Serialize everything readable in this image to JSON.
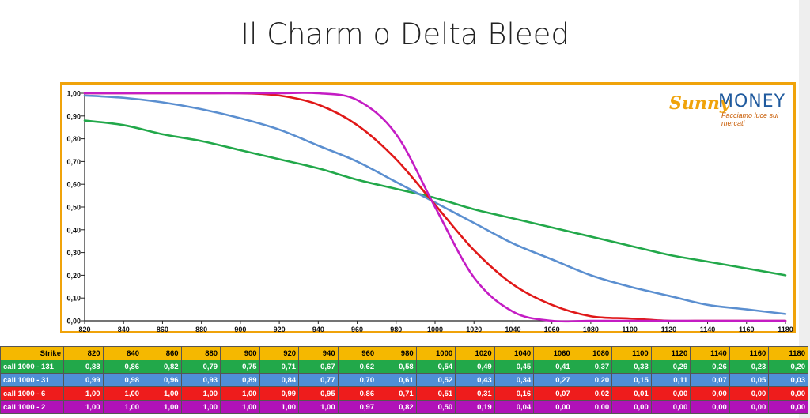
{
  "title": "Il Charm o Delta Bleed",
  "logo": {
    "word1": "Sunny",
    "word2": "MONEY",
    "tagline": "Facciamo luce sui mercati"
  },
  "colors": {
    "frame": "#f0a30a",
    "green": "#22a84a",
    "blue": "#5b8fd0",
    "red": "#e01818",
    "purple": "#c41cc4"
  },
  "chart_data": {
    "type": "line",
    "title": "",
    "xlabel": "",
    "ylabel": "",
    "x": [
      820,
      840,
      860,
      880,
      900,
      920,
      940,
      960,
      980,
      1000,
      1020,
      1040,
      1060,
      1080,
      1100,
      1120,
      1140,
      1160,
      1180
    ],
    "ylim": [
      0,
      1
    ],
    "yticks": [
      "0,00",
      "0,10",
      "0,20",
      "0,30",
      "0,40",
      "0,50",
      "0,60",
      "0,70",
      "0,80",
      "0,90",
      "1,00"
    ],
    "grid": false,
    "series": [
      {
        "name": "call 1000 - 131",
        "color": "#22a84a",
        "values": [
          0.88,
          0.86,
          0.82,
          0.79,
          0.75,
          0.71,
          0.67,
          0.62,
          0.58,
          0.54,
          0.49,
          0.45,
          0.41,
          0.37,
          0.33,
          0.29,
          0.26,
          0.23,
          0.2
        ]
      },
      {
        "name": "call 1000 - 31",
        "color": "#5b8fd0",
        "values": [
          0.99,
          0.98,
          0.96,
          0.93,
          0.89,
          0.84,
          0.77,
          0.7,
          0.61,
          0.52,
          0.43,
          0.34,
          0.27,
          0.2,
          0.15,
          0.11,
          0.07,
          0.05,
          0.03
        ]
      },
      {
        "name": "call 1000 - 6",
        "color": "#e01818",
        "values": [
          1.0,
          1.0,
          1.0,
          1.0,
          1.0,
          0.99,
          0.95,
          0.86,
          0.71,
          0.51,
          0.31,
          0.16,
          0.07,
          0.02,
          0.01,
          0.0,
          0.0,
          0.0,
          0.0
        ]
      },
      {
        "name": "call 1000 - 2",
        "color": "#c41cc4",
        "values": [
          1.0,
          1.0,
          1.0,
          1.0,
          1.0,
          1.0,
          1.0,
          0.97,
          0.82,
          0.5,
          0.19,
          0.04,
          0.0,
          0.0,
          0.0,
          0.0,
          0.0,
          0.0,
          0.0
        ]
      }
    ]
  },
  "table": {
    "header_label": "Strike",
    "columns": [
      "820",
      "840",
      "860",
      "880",
      "900",
      "920",
      "940",
      "960",
      "980",
      "1000",
      "1020",
      "1040",
      "1060",
      "1080",
      "1100",
      "1120",
      "1140",
      "1160",
      "1180"
    ],
    "rows": [
      {
        "label": "call 1000 - 131",
        "cells": [
          "0,88",
          "0,86",
          "0,82",
          "0,79",
          "0,75",
          "0,71",
          "0,67",
          "0,62",
          "0,58",
          "0,54",
          "0,49",
          "0,45",
          "0,41",
          "0,37",
          "0,33",
          "0,29",
          "0,26",
          "0,23",
          "0,20"
        ]
      },
      {
        "label": "call 1000 - 31",
        "cells": [
          "0,99",
          "0,98",
          "0,96",
          "0,93",
          "0,89",
          "0,84",
          "0,77",
          "0,70",
          "0,61",
          "0,52",
          "0,43",
          "0,34",
          "0,27",
          "0,20",
          "0,15",
          "0,11",
          "0,07",
          "0,05",
          "0,03"
        ]
      },
      {
        "label": "call 1000 - 6",
        "cells": [
          "1,00",
          "1,00",
          "1,00",
          "1,00",
          "1,00",
          "0,99",
          "0,95",
          "0,86",
          "0,71",
          "0,51",
          "0,31",
          "0,16",
          "0,07",
          "0,02",
          "0,01",
          "0,00",
          "0,00",
          "0,00",
          "0,00"
        ]
      },
      {
        "label": "call 1000 - 2",
        "cells": [
          "1,00",
          "1,00",
          "1,00",
          "1,00",
          "1,00",
          "1,00",
          "1,00",
          "0,97",
          "0,82",
          "0,50",
          "0,19",
          "0,04",
          "0,00",
          "0,00",
          "0,00",
          "0,00",
          "0,00",
          "0,00",
          "0,00"
        ]
      }
    ]
  }
}
